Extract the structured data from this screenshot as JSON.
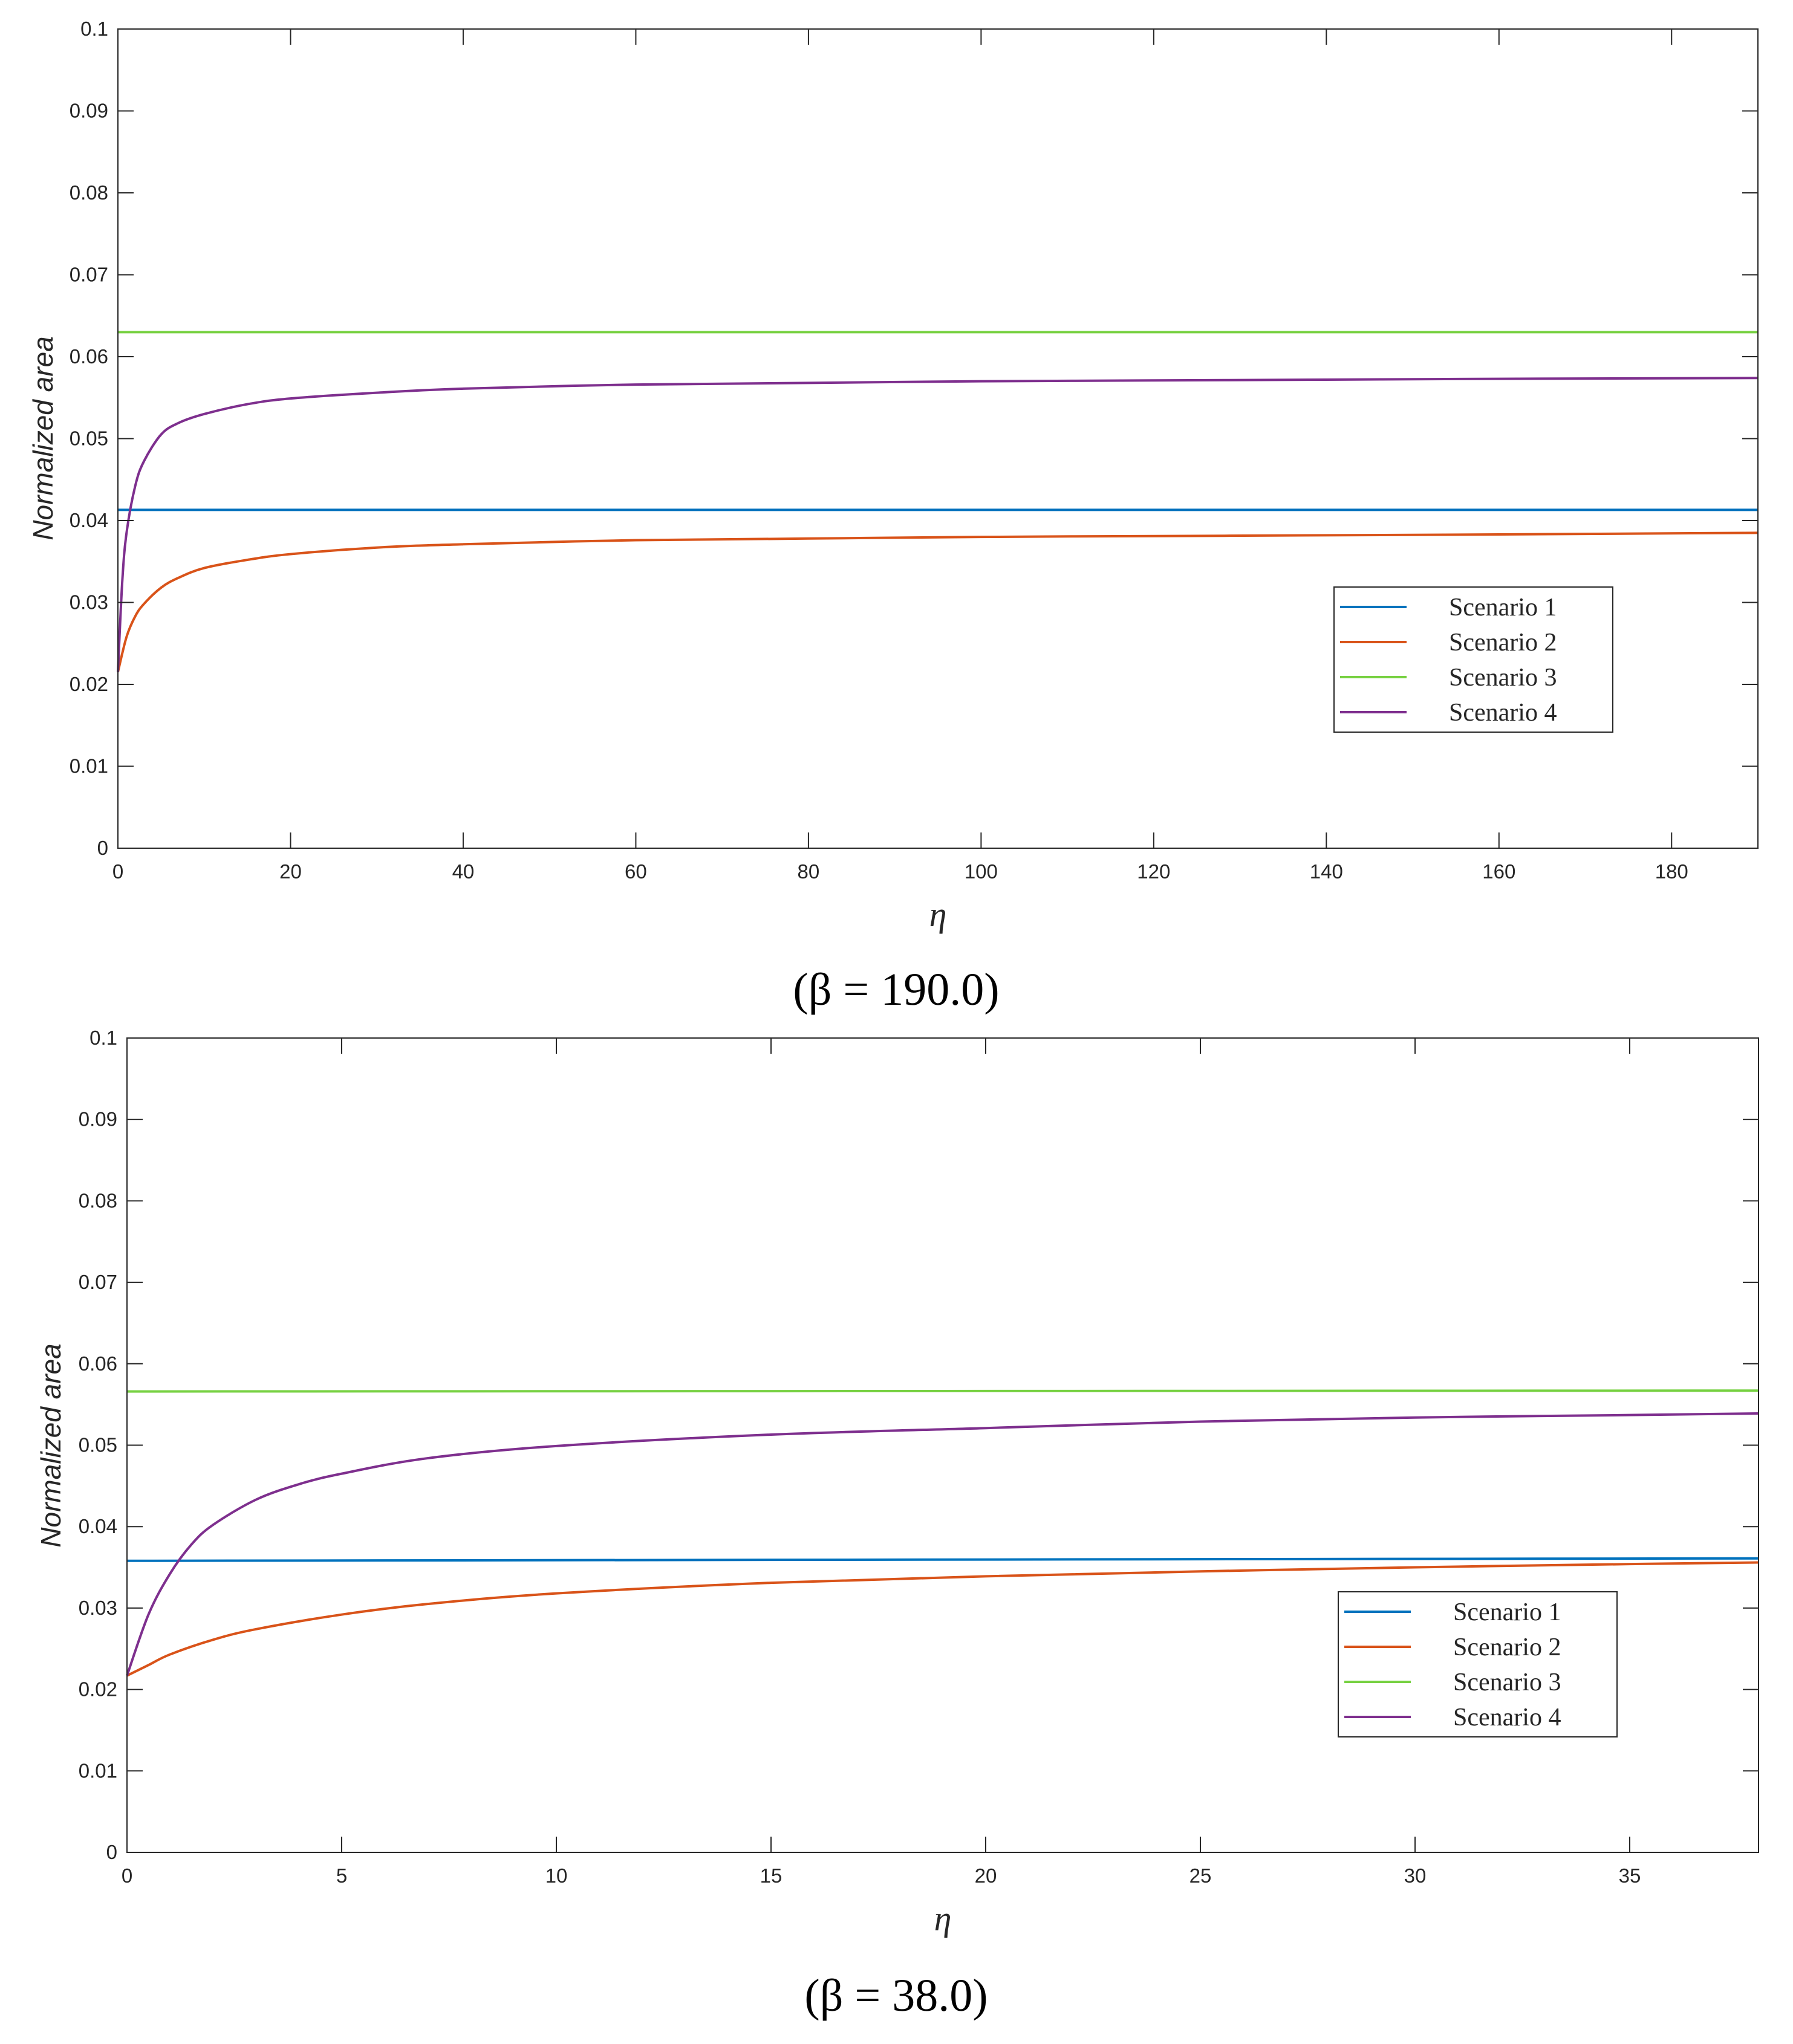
{
  "chart_data": [
    {
      "type": "line",
      "caption": "(β = 190.0)",
      "xlabel": "η",
      "ylabel": "Normalized area",
      "xlim": [
        0,
        190
      ],
      "ylim": [
        0,
        0.1
      ],
      "xticks": [
        0,
        20,
        40,
        60,
        80,
        100,
        120,
        140,
        160,
        180
      ],
      "xtick_labels": [
        "0",
        "20",
        "40",
        "60",
        "80",
        "100",
        "120",
        "140",
        "160",
        "180"
      ],
      "yticks": [
        0,
        0.01,
        0.02,
        0.03,
        0.04,
        0.05,
        0.06,
        0.07,
        0.08,
        0.09,
        0.1
      ],
      "ytick_labels": [
        "0",
        "0.01",
        "0.02",
        "0.03",
        "0.04",
        "0.05",
        "0.06",
        "0.07",
        "0.08",
        "0.09",
        "0.1"
      ],
      "grid": false,
      "legend_position": "lower-right",
      "series": [
        {
          "name": "Scenario 1",
          "color": "#0072BD",
          "x": [
            0,
            190
          ],
          "y": [
            0.0413,
            0.0413
          ]
        },
        {
          "name": "Scenario 2",
          "color": "#D95319",
          "x": [
            0,
            1,
            2,
            3,
            5,
            7,
            10,
            15,
            20,
            30,
            40,
            60,
            80,
            100,
            120,
            140,
            160,
            190
          ],
          "y": [
            0.0215,
            0.0258,
            0.0283,
            0.0298,
            0.0318,
            0.033,
            0.0342,
            0.0352,
            0.0359,
            0.0367,
            0.0371,
            0.0376,
            0.0378,
            0.038,
            0.0381,
            0.0382,
            0.0383,
            0.0385
          ]
        },
        {
          "name": "Scenario 3",
          "color": "#77D142",
          "x": [
            0,
            190
          ],
          "y": [
            0.063,
            0.063
          ]
        },
        {
          "name": "Scenario 4",
          "color": "#7E2F8E",
          "x": [
            0,
            0.5,
            1,
            2,
            3,
            5,
            7,
            10,
            15,
            20,
            30,
            40,
            60,
            80,
            100,
            120,
            140,
            160,
            190
          ],
          "y": [
            0.0215,
            0.0325,
            0.0385,
            0.0442,
            0.0472,
            0.0505,
            0.0519,
            0.053,
            0.0542,
            0.0549,
            0.0556,
            0.0561,
            0.0566,
            0.0568,
            0.057,
            0.0571,
            0.0572,
            0.0573,
            0.0574
          ]
        }
      ]
    },
    {
      "type": "line",
      "caption": "(β = 38.0)",
      "xlabel": "η",
      "ylabel": "Normalized area",
      "xlim": [
        0,
        38
      ],
      "ylim": [
        0,
        0.1
      ],
      "xticks": [
        0,
        5,
        10,
        15,
        20,
        25,
        30,
        35
      ],
      "xtick_labels": [
        "0",
        "5",
        "10",
        "15",
        "20",
        "25",
        "30",
        "35"
      ],
      "yticks": [
        0,
        0.01,
        0.02,
        0.03,
        0.04,
        0.05,
        0.06,
        0.07,
        0.08,
        0.09,
        0.1
      ],
      "ytick_labels": [
        "0",
        "0.01",
        "0.02",
        "0.03",
        "0.04",
        "0.05",
        "0.06",
        "0.07",
        "0.08",
        "0.09",
        "0.1"
      ],
      "grid": false,
      "legend_position": "lower-right",
      "series": [
        {
          "name": "Scenario 1",
          "color": "#0072BD",
          "x": [
            0,
            38
          ],
          "y": [
            0.0358,
            0.0361
          ]
        },
        {
          "name": "Scenario 2",
          "color": "#D95319",
          "x": [
            0,
            0.5,
            1,
            2,
            3,
            5,
            7,
            10,
            15,
            20,
            25,
            30,
            35,
            38
          ],
          "y": [
            0.0217,
            0.023,
            0.0243,
            0.0261,
            0.0274,
            0.0292,
            0.0305,
            0.0318,
            0.0331,
            0.0339,
            0.0345,
            0.035,
            0.0354,
            0.0356
          ]
        },
        {
          "name": "Scenario 3",
          "color": "#77D142",
          "x": [
            0,
            38
          ],
          "y": [
            0.0566,
            0.0567
          ]
        },
        {
          "name": "Scenario 4",
          "color": "#7E2F8E",
          "x": [
            0,
            0.5,
            1,
            1.5,
            2,
            3,
            4,
            5,
            7,
            10,
            15,
            20,
            25,
            30,
            35,
            38
          ],
          "y": [
            0.0217,
            0.0292,
            0.0342,
            0.0378,
            0.0402,
            0.0433,
            0.0452,
            0.0465,
            0.0484,
            0.0499,
            0.0513,
            0.0521,
            0.0529,
            0.0534,
            0.0537,
            0.0539
          ]
        }
      ]
    }
  ]
}
